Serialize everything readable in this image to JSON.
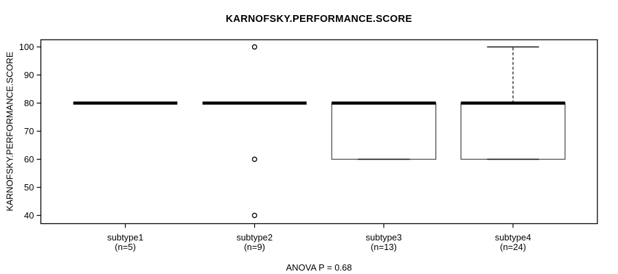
{
  "chart_data": {
    "type": "boxplot",
    "title": "KARNOFSKY.PERFORMANCE.SCORE",
    "ylabel": "KARNOFSKY.PERFORMANCE.SCORE",
    "footer": "ANOVA P = 0.68",
    "ylim": [
      40,
      100
    ],
    "yticks": [
      40,
      50,
      60,
      70,
      80,
      90,
      100
    ],
    "grid": false,
    "legend": "none",
    "series": [
      {
        "label": "subtype1",
        "sublabel": "(n=5)",
        "n": 5,
        "stats": {
          "min": 80,
          "q1": 80,
          "median": 80,
          "q3": 80,
          "max": 80
        },
        "outliers": []
      },
      {
        "label": "subtype2",
        "sublabel": "(n=9)",
        "n": 9,
        "stats": {
          "min": 80,
          "q1": 80,
          "median": 80,
          "q3": 80,
          "max": 80
        },
        "outliers": [
          100,
          60,
          40
        ]
      },
      {
        "label": "subtype3",
        "sublabel": "(n=13)",
        "n": 13,
        "stats": {
          "min": 60,
          "q1": 60,
          "median": 80,
          "q3": 80,
          "max": 80
        },
        "outliers": []
      },
      {
        "label": "subtype4",
        "sublabel": "(n=24)",
        "n": 24,
        "stats": {
          "min": 60,
          "q1": 60,
          "median": 80,
          "q3": 80,
          "max": 100
        },
        "outliers": []
      }
    ],
    "colors": {
      "line": "#000000",
      "box_border": "#4d4d4d",
      "background": "#ffffff"
    }
  }
}
